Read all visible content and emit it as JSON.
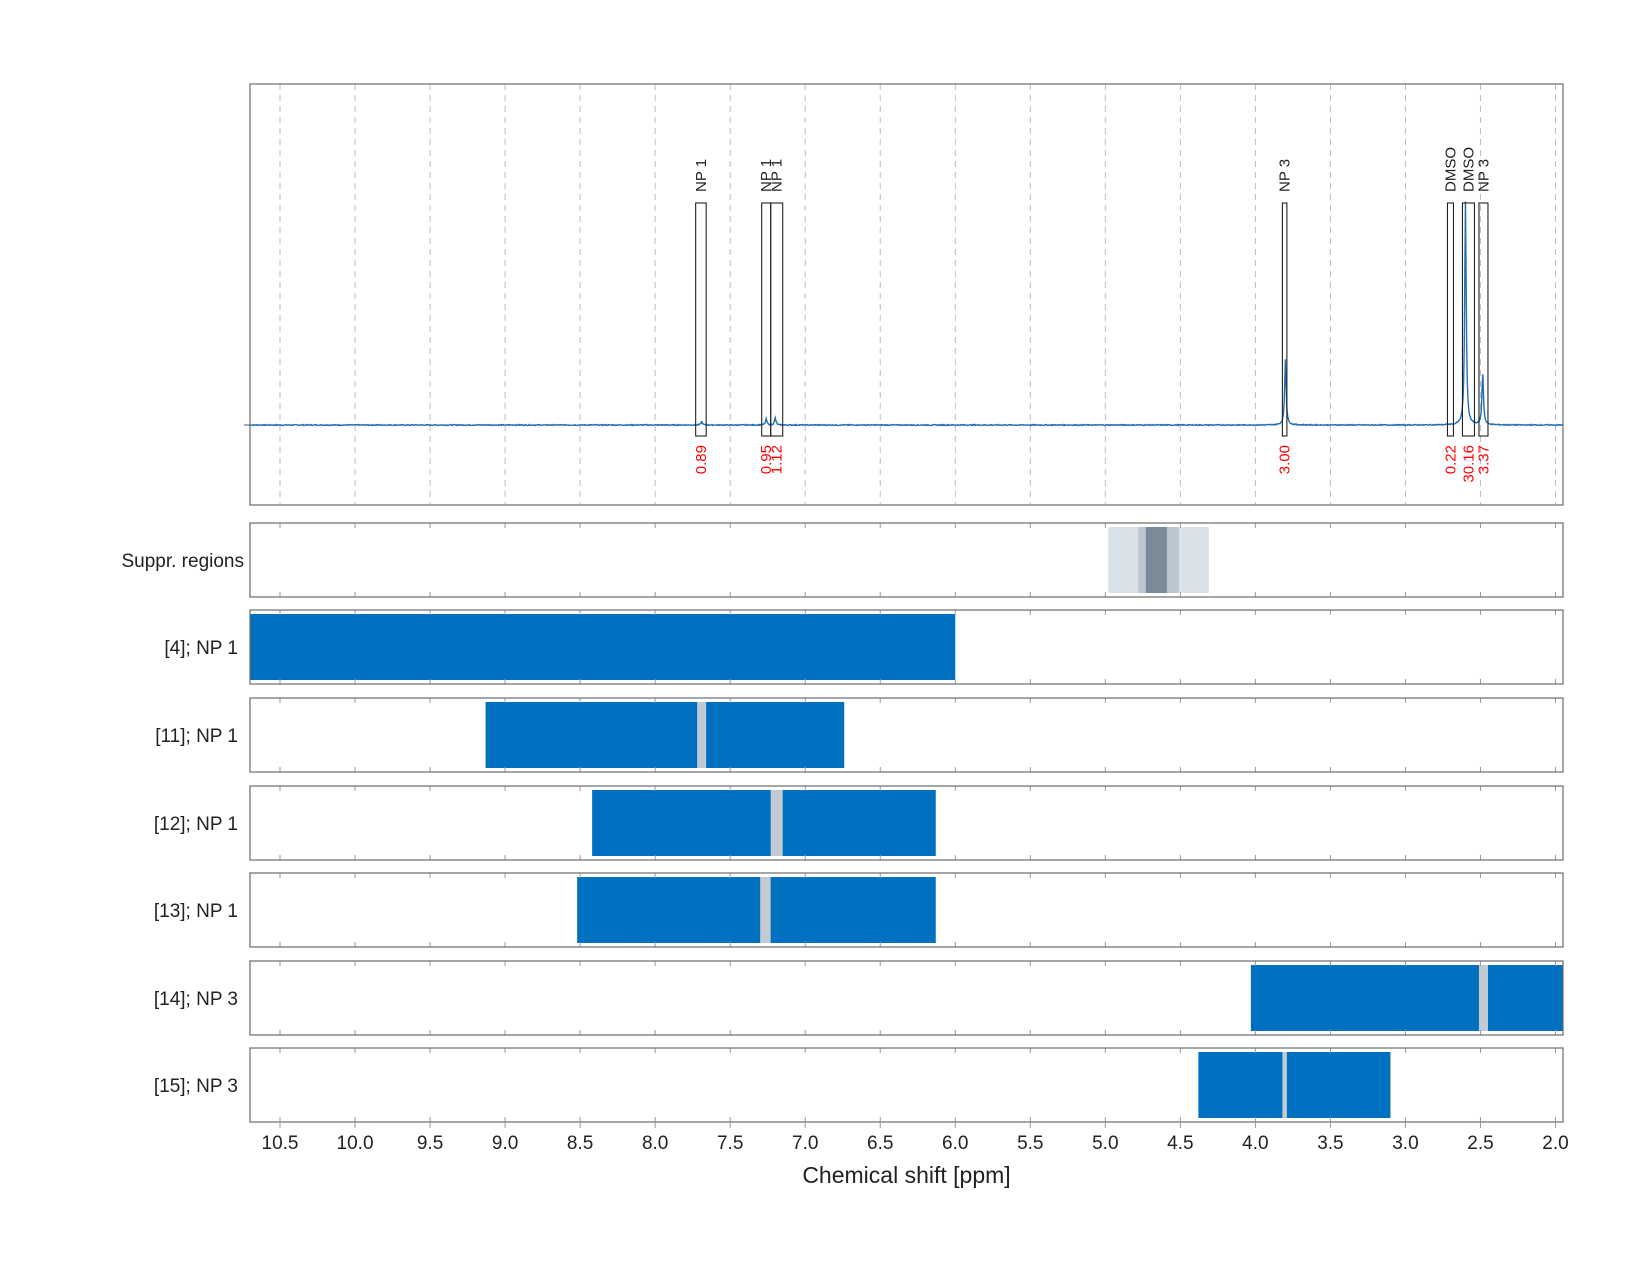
{
  "chart_data": {
    "type": "line",
    "title": "",
    "xlabel": "Chemical shift [ppm]",
    "xlim": [
      10.7,
      1.95
    ],
    "x_ticks": [
      10.5,
      10.0,
      9.5,
      9.0,
      8.5,
      8.0,
      7.5,
      7.0,
      6.5,
      6.0,
      5.5,
      5.0,
      4.5,
      4.0,
      3.5,
      3.0,
      2.5,
      2.0
    ],
    "x_tick_labels": [
      "10.5",
      "10.0",
      "9.5",
      "9.0",
      "8.5",
      "8.0",
      "7.5",
      "7.0",
      "6.5",
      "6.0",
      "5.5",
      "5.0",
      "4.5",
      "4.0",
      "3.5",
      "3.0",
      "2.5",
      "2.0"
    ],
    "grid": true,
    "spectrum": {
      "color": "#1f6fb5",
      "peaks": [
        {
          "x": 7.69,
          "height": 0.015
        },
        {
          "x": 7.26,
          "height": 0.025
        },
        {
          "x": 7.2,
          "height": 0.03
        },
        {
          "x": 3.8,
          "height": 0.28
        },
        {
          "x": 2.6,
          "height": 0.95
        },
        {
          "x": 2.485,
          "height": 0.22
        }
      ]
    },
    "peak_annotations": [
      {
        "label": "NP 1",
        "x_left": 7.73,
        "x_right": 7.66,
        "integral": "0.89"
      },
      {
        "label": "NP 1",
        "x_left": 7.29,
        "x_right": 7.23,
        "integral": "0.95"
      },
      {
        "label": "NP 1",
        "x_left": 7.23,
        "x_right": 7.15,
        "integral": "1.12"
      },
      {
        "label": "NP 3",
        "x_left": 3.82,
        "x_right": 3.79,
        "integral": "3.00"
      },
      {
        "label": "DMSO",
        "x_left": 2.72,
        "x_right": 2.68,
        "integral": "0.22"
      },
      {
        "label": "DMSO",
        "x_left": 2.62,
        "x_right": 2.54,
        "integral": "30.16"
      },
      {
        "label": "NP 3",
        "x_left": 2.51,
        "x_right": 2.45,
        "integral": "3.37"
      }
    ],
    "suppression_regions": {
      "label": "Suppr. regions",
      "bands": [
        {
          "x_left": 4.98,
          "x_right": 4.31,
          "color": "#d9e1e8"
        },
        {
          "x_left": 4.78,
          "x_right": 4.51,
          "color": "#b9c5cf"
        },
        {
          "x_left": 4.73,
          "x_right": 4.59,
          "color": "#7a8a96"
        }
      ]
    },
    "ranges": [
      {
        "label": "[4]; NP 1",
        "x_left": 10.7,
        "x_right": 6.0,
        "markers": []
      },
      {
        "label": "[11]; NP 1",
        "x_left": 9.13,
        "x_right": 6.74,
        "markers": [
          {
            "x_left": 7.72,
            "x_right": 7.66
          }
        ]
      },
      {
        "label": "[12]; NP 1",
        "x_left": 8.42,
        "x_right": 6.13,
        "markers": [
          {
            "x_left": 7.23,
            "x_right": 7.15
          }
        ]
      },
      {
        "label": "[13]; NP 1",
        "x_left": 8.52,
        "x_right": 6.13,
        "markers": [
          {
            "x_left": 7.3,
            "x_right": 7.23
          }
        ]
      },
      {
        "label": "[14]; NP 3",
        "x_left": 4.03,
        "x_right": 1.95,
        "markers": [
          {
            "x_left": 2.51,
            "x_right": 2.45
          }
        ]
      },
      {
        "label": "[15]; NP 3",
        "x_left": 4.38,
        "x_right": 3.1,
        "markers": [
          {
            "x_left": 3.82,
            "x_right": 3.79
          }
        ]
      }
    ],
    "colors": {
      "range_fill": "#0070c0",
      "marker_fill": "#c3cbd2",
      "integral_text": "#ff0000"
    }
  }
}
